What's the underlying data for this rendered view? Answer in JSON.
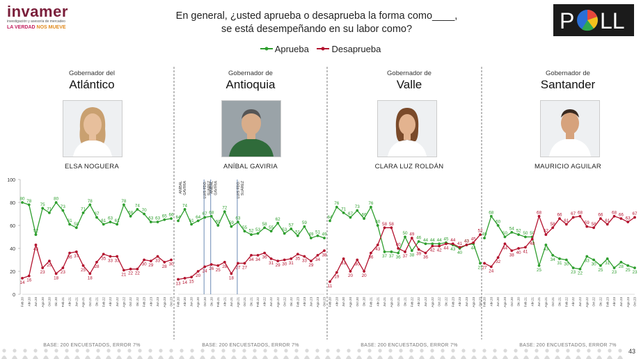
{
  "logo": {
    "name": "invamer",
    "subtitle": "investigación y asesoría de mercadeo",
    "tagline_a": "LA VERDAD",
    "tagline_b": "NOS MUEVE"
  },
  "question": {
    "line1": "En general, ¿usted aprueba o desaprueba la forma como____,",
    "line2": "se está desempeñando en su labor como?"
  },
  "poll_logo": {
    "letter_p": "P",
    "letters_ll": "LL"
  },
  "legend": [
    {
      "label": "Aprueba",
      "color": "#2e9e2e"
    },
    {
      "label": "Desaprueba",
      "color": "#b3122e"
    }
  ],
  "colors": {
    "aprueba": "#2e9e2e",
    "desaprueba": "#b3122e",
    "divider": "#444444",
    "event_line": "#6b8ab5"
  },
  "page_number": "43",
  "y_axis": {
    "ticks": [
      "0",
      "20",
      "40",
      "60",
      "80",
      "100"
    ],
    "min": 0,
    "max": 100
  },
  "panels": [
    {
      "role": "Gobernador del",
      "department": "Atlántico",
      "governor": "ELSA NOGUERA",
      "photo": "woman-portrait",
      "base": "BASE: 200 ENCUESTADOS, ERROR 7%"
    },
    {
      "role": "Gobernador de",
      "department": "Antioquia",
      "governor": "ANÍBAL GAVIRIA",
      "photo": "man-portrait",
      "base": "BASE: 200 ENCUESTADOS, ERROR 7%"
    },
    {
      "role": "Gobernador de",
      "department": "Valle",
      "governor": "CLARA LUZ ROLDÁN",
      "photo": "woman-portrait",
      "base": "BASE: 200 ENCUESTADOS, ERROR 7%"
    },
    {
      "role": "Gobernador de",
      "department": "Santander",
      "governor": "MAURICIO AGUILAR",
      "photo": "man-portrait",
      "base": "BASE: 200 ENCUESTADOS, ERROR 7%"
    }
  ],
  "chart_data": [
    {
      "type": "line",
      "title": "Atlántico",
      "ylim": [
        0,
        100
      ],
      "x_labels": [
        "Feb.20",
        "Abr.20",
        "Jun.20",
        "Ago.20",
        "Oct.20",
        "Dic.20",
        "Feb.21",
        "Abr.21",
        "Jun.21",
        "Ago.21",
        "Oct.21",
        "Dic.21",
        "Feb.22",
        "Abr.22",
        "Jun.22",
        "Ago.22",
        "Oct.22",
        "Dic.22",
        "Feb.23",
        "Abr.23",
        "Jun.23",
        "Ago.23",
        "Oct.23"
      ],
      "series": [
        {
          "name": "Aprueba",
          "values": [
            80,
            78,
            52,
            75,
            71,
            80,
            73,
            61,
            58,
            71,
            78,
            67,
            61,
            63,
            61,
            78,
            68,
            74,
            70,
            63,
            63,
            65,
            66
          ]
        },
        {
          "name": "Desaprueba",
          "values": [
            14,
            16,
            43,
            23,
            29,
            18,
            23,
            36,
            37,
            25,
            18,
            28,
            35,
            33,
            33,
            21,
            22,
            22,
            30,
            29,
            33,
            28,
            30
          ]
        }
      ]
    },
    {
      "type": "line",
      "title": "Antioquia",
      "ylim": [
        0,
        100
      ],
      "x_labels": [
        "Feb.20",
        "Abr.20",
        "Jun.20",
        "Ago.20",
        "Oct.20",
        "Dic.20",
        "Feb.21",
        "Abr.21",
        "Jun.21",
        "Ago.21",
        "Oct.21",
        "Dic.21",
        "Feb.22",
        "Abr.22",
        "Jun.22",
        "Ago.22",
        "Oct.22",
        "Dic.22",
        "Feb.23",
        "Abr.23",
        "Jun.23",
        "Ago.23",
        "Oct.23"
      ],
      "annotations": [
        {
          "label": "ANÍBAL GAVIRIA",
          "at": "Feb.20"
        },
        {
          "label": "LUIS FDO. SUÁREZ",
          "at": "Oct.20"
        },
        {
          "label": "ANÍBAL GAVIRIA",
          "at": "Dic.20"
        },
        {
          "label": "LUIS FDO. SUÁREZ",
          "at": "Ago.21"
        }
      ],
      "series": [
        {
          "name": "Aprueba",
          "values": [
            64,
            74,
            61,
            64,
            67,
            68,
            60,
            72,
            59,
            63,
            55,
            52,
            53,
            58,
            55,
            62,
            53,
            57,
            51,
            59,
            49,
            51,
            49
          ]
        },
        {
          "name": "Desaprueba",
          "values": [
            13,
            14,
            15,
            20,
            24,
            26,
            25,
            28,
            18,
            27,
            27,
            34,
            34,
            36,
            31,
            29,
            30,
            31,
            35,
            33,
            29,
            34,
            38
          ]
        }
      ]
    },
    {
      "type": "line",
      "title": "Valle",
      "ylim": [
        0,
        100
      ],
      "x_labels": [
        "Feb.20",
        "Abr.20",
        "Jun.20",
        "Ago.20",
        "Oct.20",
        "Dic.20",
        "Feb.21",
        "Abr.21",
        "Jun.21",
        "Ago.21",
        "Oct.21",
        "Dic.21",
        "Feb.22",
        "Abr.22",
        "Jun.22",
        "Ago.22",
        "Oct.22",
        "Dic.22",
        "Feb.23",
        "Abr.23",
        "Jun.23",
        "Ago.23",
        "Oct.23"
      ],
      "series": [
        {
          "name": "Aprueba",
          "values": [
            64,
            76,
            71,
            67,
            73,
            66,
            76,
            60,
            37,
            37,
            36,
            50,
            38,
            46,
            44,
            44,
            44,
            45,
            43,
            40,
            43,
            44,
            27
          ]
        },
        {
          "name": "Desaprueba",
          "values": [
            11,
            19,
            31,
            20,
            30,
            20,
            36,
            43,
            58,
            58,
            40,
            37,
            49,
            39,
            36,
            42,
            42,
            44,
            44,
            41,
            43,
            45,
            52
          ]
        }
      ]
    },
    {
      "type": "line",
      "title": "Santander",
      "ylim": [
        0,
        100
      ],
      "x_labels": [
        "Feb.20",
        "Abr.20",
        "Jun.20",
        "Ago.20",
        "Oct.20",
        "Dic.20",
        "Feb.21",
        "Abr.21",
        "Jun.21",
        "Ago.21",
        "Oct.21",
        "Dic.21",
        "Feb.22",
        "Abr.22",
        "Jun.22",
        "Ago.22",
        "Oct.22",
        "Dic.22",
        "Feb.23",
        "Abr.23",
        "Jun.23",
        "Ago.23",
        "Oct.23"
      ],
      "series": [
        {
          "name": "Aprueba",
          "values": [
            49,
            68,
            60,
            50,
            54,
            52,
            50,
            50,
            25,
            43,
            34,
            31,
            30,
            23,
            22,
            33,
            30,
            25,
            31,
            23,
            28,
            25,
            23
          ]
        },
        {
          "name": "Desaprueba",
          "values": [
            27,
            24,
            32,
            44,
            38,
            40,
            41,
            48,
            68,
            52,
            58,
            66,
            61,
            67,
            68,
            59,
            58,
            66,
            61,
            68,
            66,
            63,
            67
          ]
        }
      ]
    }
  ]
}
